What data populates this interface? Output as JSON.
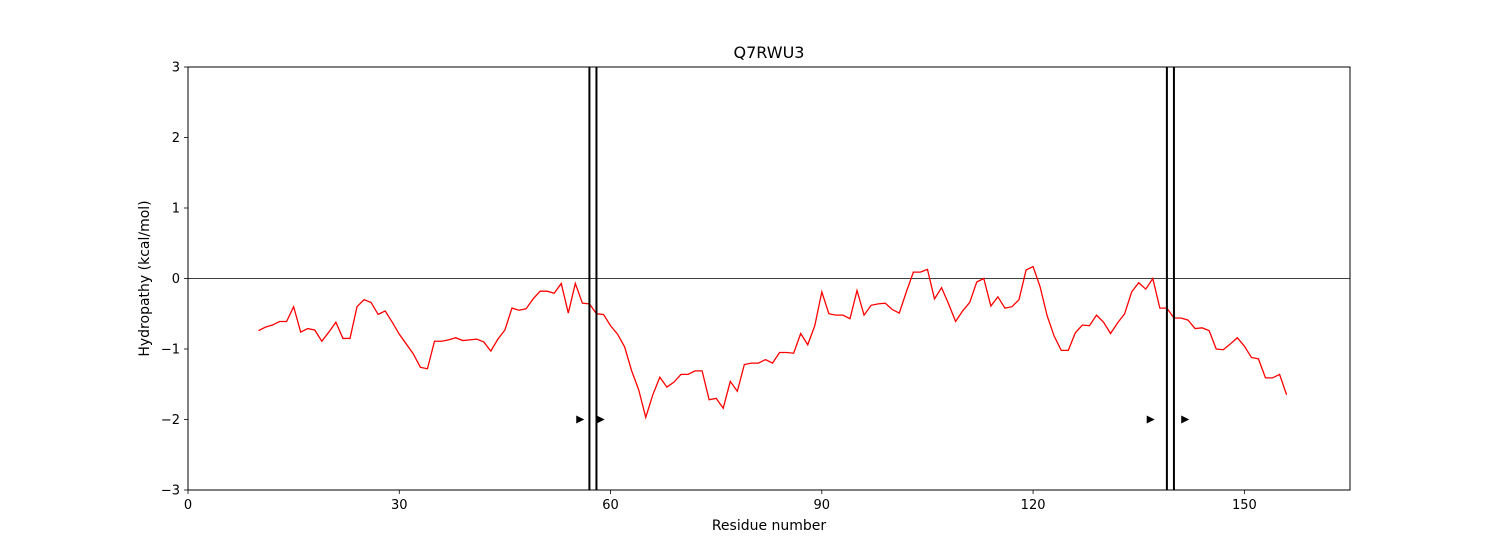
{
  "chart_data": {
    "type": "line",
    "title": "Q7RWU3",
    "xlabel": "Residue number",
    "ylabel": "Hydropathy (kcal/mol)",
    "xlim": [
      0,
      165
    ],
    "ylim": [
      -3,
      3
    ],
    "xticks": [
      0,
      30,
      60,
      90,
      120,
      150
    ],
    "yticks": [
      -3,
      -2,
      -1,
      0,
      1,
      2,
      3
    ],
    "ytick_labels": [
      "−3",
      "−2",
      "−1",
      "0",
      "1",
      "2",
      "3"
    ],
    "grid": false,
    "zero_line": true,
    "series": [
      {
        "color": "#ff0000",
        "x": [
          10,
          11,
          12,
          13,
          14,
          15,
          16,
          17,
          18,
          19,
          20,
          21,
          22,
          23,
          24,
          25,
          26,
          27,
          28,
          29,
          30,
          31,
          32,
          33,
          34,
          35,
          36,
          37,
          38,
          39,
          40,
          41,
          42,
          43,
          44,
          45,
          46,
          47,
          48,
          49,
          50,
          51,
          52,
          53,
          54,
          55,
          56,
          57,
          58,
          59,
          60,
          61,
          62,
          63,
          64,
          65,
          66,
          67,
          68,
          69,
          70,
          71,
          72,
          73,
          74,
          75,
          76,
          77,
          78,
          79,
          80,
          81,
          82,
          83,
          84,
          85,
          86,
          87,
          88,
          89,
          90,
          91,
          92,
          93,
          94,
          95,
          96,
          97,
          98,
          99,
          100,
          101,
          102,
          103,
          104,
          105,
          106,
          107,
          108,
          109,
          110,
          111,
          112,
          113,
          114,
          115,
          116,
          117,
          118,
          119,
          120,
          121,
          122,
          123,
          124,
          125,
          126,
          127,
          128,
          129,
          130,
          131,
          132,
          133,
          134,
          135,
          136,
          137,
          138,
          139,
          140,
          141,
          142,
          143,
          144,
          145,
          146,
          147,
          148,
          149,
          150,
          151,
          152,
          153,
          154,
          155,
          156
        ],
        "y": [
          -0.74,
          -0.69,
          -0.66,
          -0.61,
          -0.61,
          -0.4,
          -0.76,
          -0.71,
          -0.73,
          -0.89,
          -0.76,
          -0.62,
          -0.85,
          -0.85,
          -0.4,
          -0.3,
          -0.34,
          -0.51,
          -0.46,
          -0.62,
          -0.79,
          -0.93,
          -1.07,
          -1.26,
          -1.28,
          -0.89,
          -0.89,
          -0.87,
          -0.84,
          -0.88,
          -0.87,
          -0.86,
          -0.9,
          -1.03,
          -0.86,
          -0.73,
          -0.42,
          -0.45,
          -0.43,
          -0.29,
          -0.18,
          -0.18,
          -0.21,
          -0.07,
          -0.49,
          -0.07,
          -0.35,
          -0.36,
          -0.5,
          -0.51,
          -0.67,
          -0.79,
          -0.97,
          -1.31,
          -1.58,
          -1.97,
          -1.65,
          -1.4,
          -1.54,
          -1.47,
          -1.36,
          -1.36,
          -1.31,
          -1.31,
          -1.72,
          -1.7,
          -1.84,
          -1.46,
          -1.6,
          -1.22,
          -1.2,
          -1.2,
          -1.15,
          -1.2,
          -1.05,
          -1.05,
          -1.06,
          -0.78,
          -0.94,
          -0.67,
          -0.19,
          -0.5,
          -0.52,
          -0.52,
          -0.57,
          -0.17,
          -0.52,
          -0.38,
          -0.36,
          -0.35,
          -0.44,
          -0.49,
          -0.19,
          0.09,
          0.09,
          0.13,
          -0.29,
          -0.13,
          -0.36,
          -0.61,
          -0.46,
          -0.34,
          -0.05,
          0.0,
          -0.39,
          -0.26,
          -0.42,
          -0.4,
          -0.3,
          0.12,
          0.17,
          -0.12,
          -0.53,
          -0.82,
          -1.02,
          -1.02,
          -0.77,
          -0.66,
          -0.67,
          -0.52,
          -0.62,
          -0.78,
          -0.63,
          -0.5,
          -0.19,
          -0.06,
          -0.15,
          0.0,
          -0.42,
          -0.42,
          -0.56,
          -0.56,
          -0.59,
          -0.71,
          -0.7,
          -0.74,
          -1.0,
          -1.01,
          -0.93,
          -0.84,
          -0.96,
          -1.12,
          -1.14,
          -1.41,
          -1.41,
          -1.36,
          -1.65
        ]
      }
    ],
    "vlines": [
      57,
      58,
      139,
      140
    ],
    "arrows": [
      {
        "x": 55.7,
        "y": -2
      },
      {
        "x": 58.6,
        "y": -2
      },
      {
        "x": 136.7,
        "y": -2
      },
      {
        "x": 141.6,
        "y": -2
      }
    ]
  }
}
